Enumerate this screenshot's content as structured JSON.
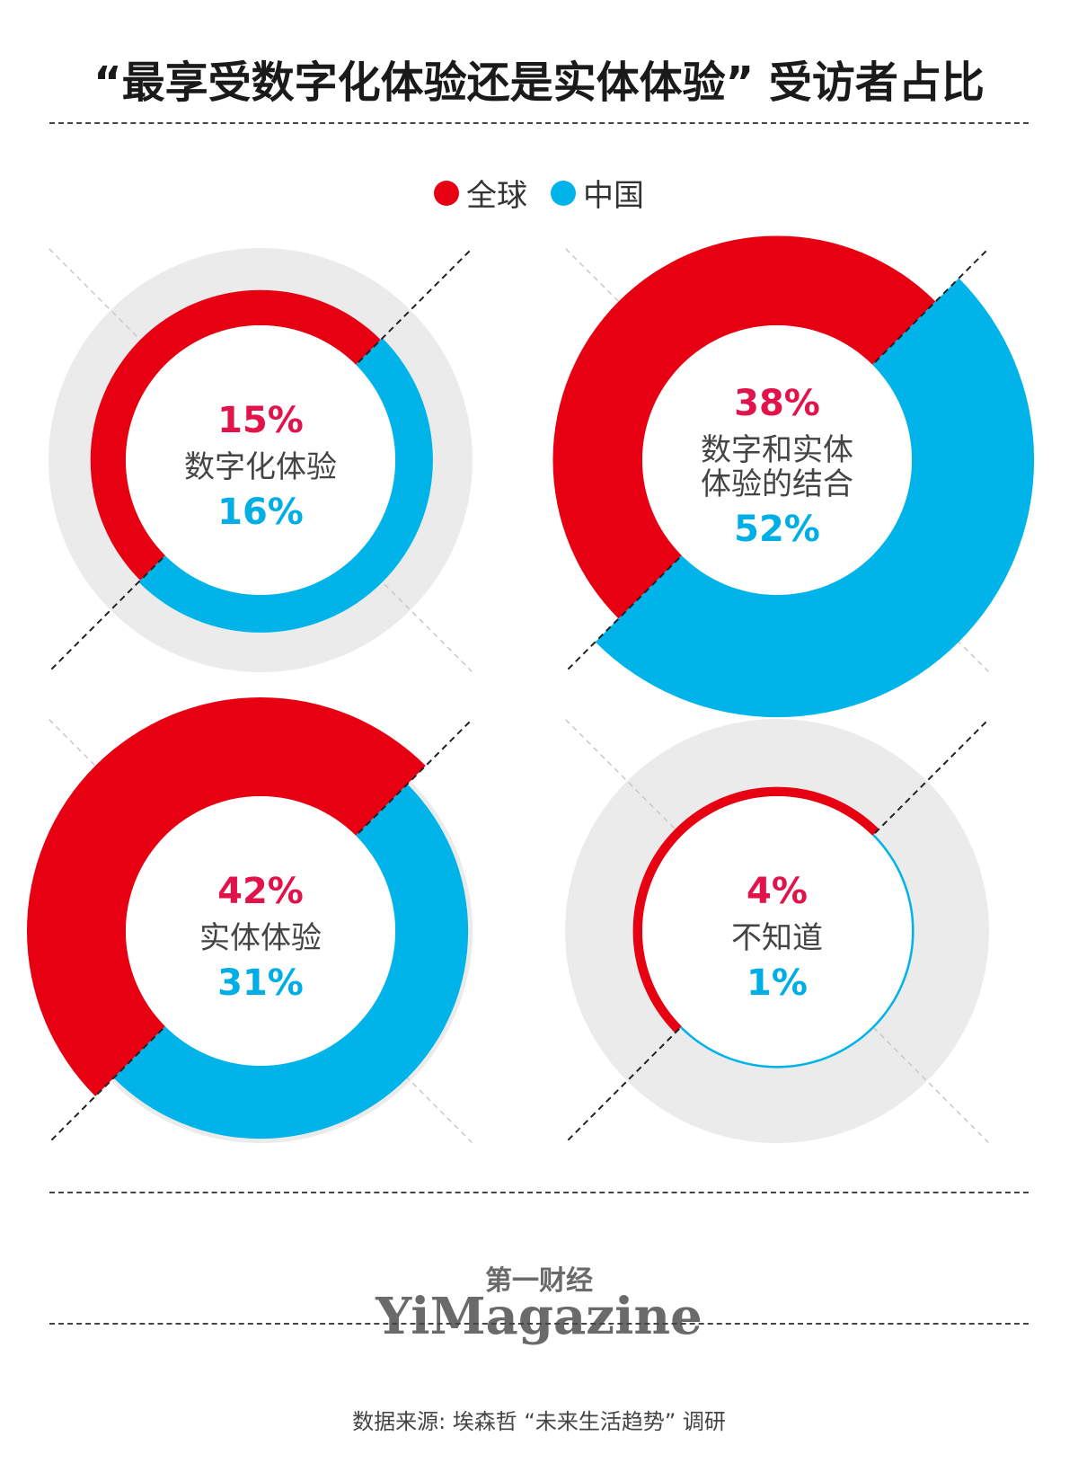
{
  "title": "“最享受数字化体验还是实体体验” 受访者占比",
  "legend": [
    {
      "label": "全球",
      "color": "#e60012"
    },
    {
      "label": "中国",
      "color": "#00b4ea"
    }
  ],
  "chart_data": {
    "type": "donut",
    "series_names": [
      "全球",
      "中国"
    ],
    "colors": {
      "global": "#e60012",
      "china": "#00b4ea",
      "background": "#ebebeb"
    },
    "categories": [
      {
        "label": "数字化体验",
        "global_pct": "15%",
        "china_pct": "16%",
        "global": 15,
        "china": 16
      },
      {
        "label": "数字和实体体验的结合",
        "global_pct": "38%",
        "china_pct": "52%",
        "global": 38,
        "china": 52
      },
      {
        "label": "实体体验",
        "global_pct": "42%",
        "china_pct": "31%",
        "global": 42,
        "china": 31
      },
      {
        "label": "不知道",
        "global_pct": "4%",
        "china_pct": "1%",
        "global": 4,
        "china": 1
      }
    ]
  },
  "brand": {
    "cn": "第一财经",
    "en": "YiMagazine"
  },
  "source": "数据来源: 埃森哲 “未来生活趋势” 调研"
}
